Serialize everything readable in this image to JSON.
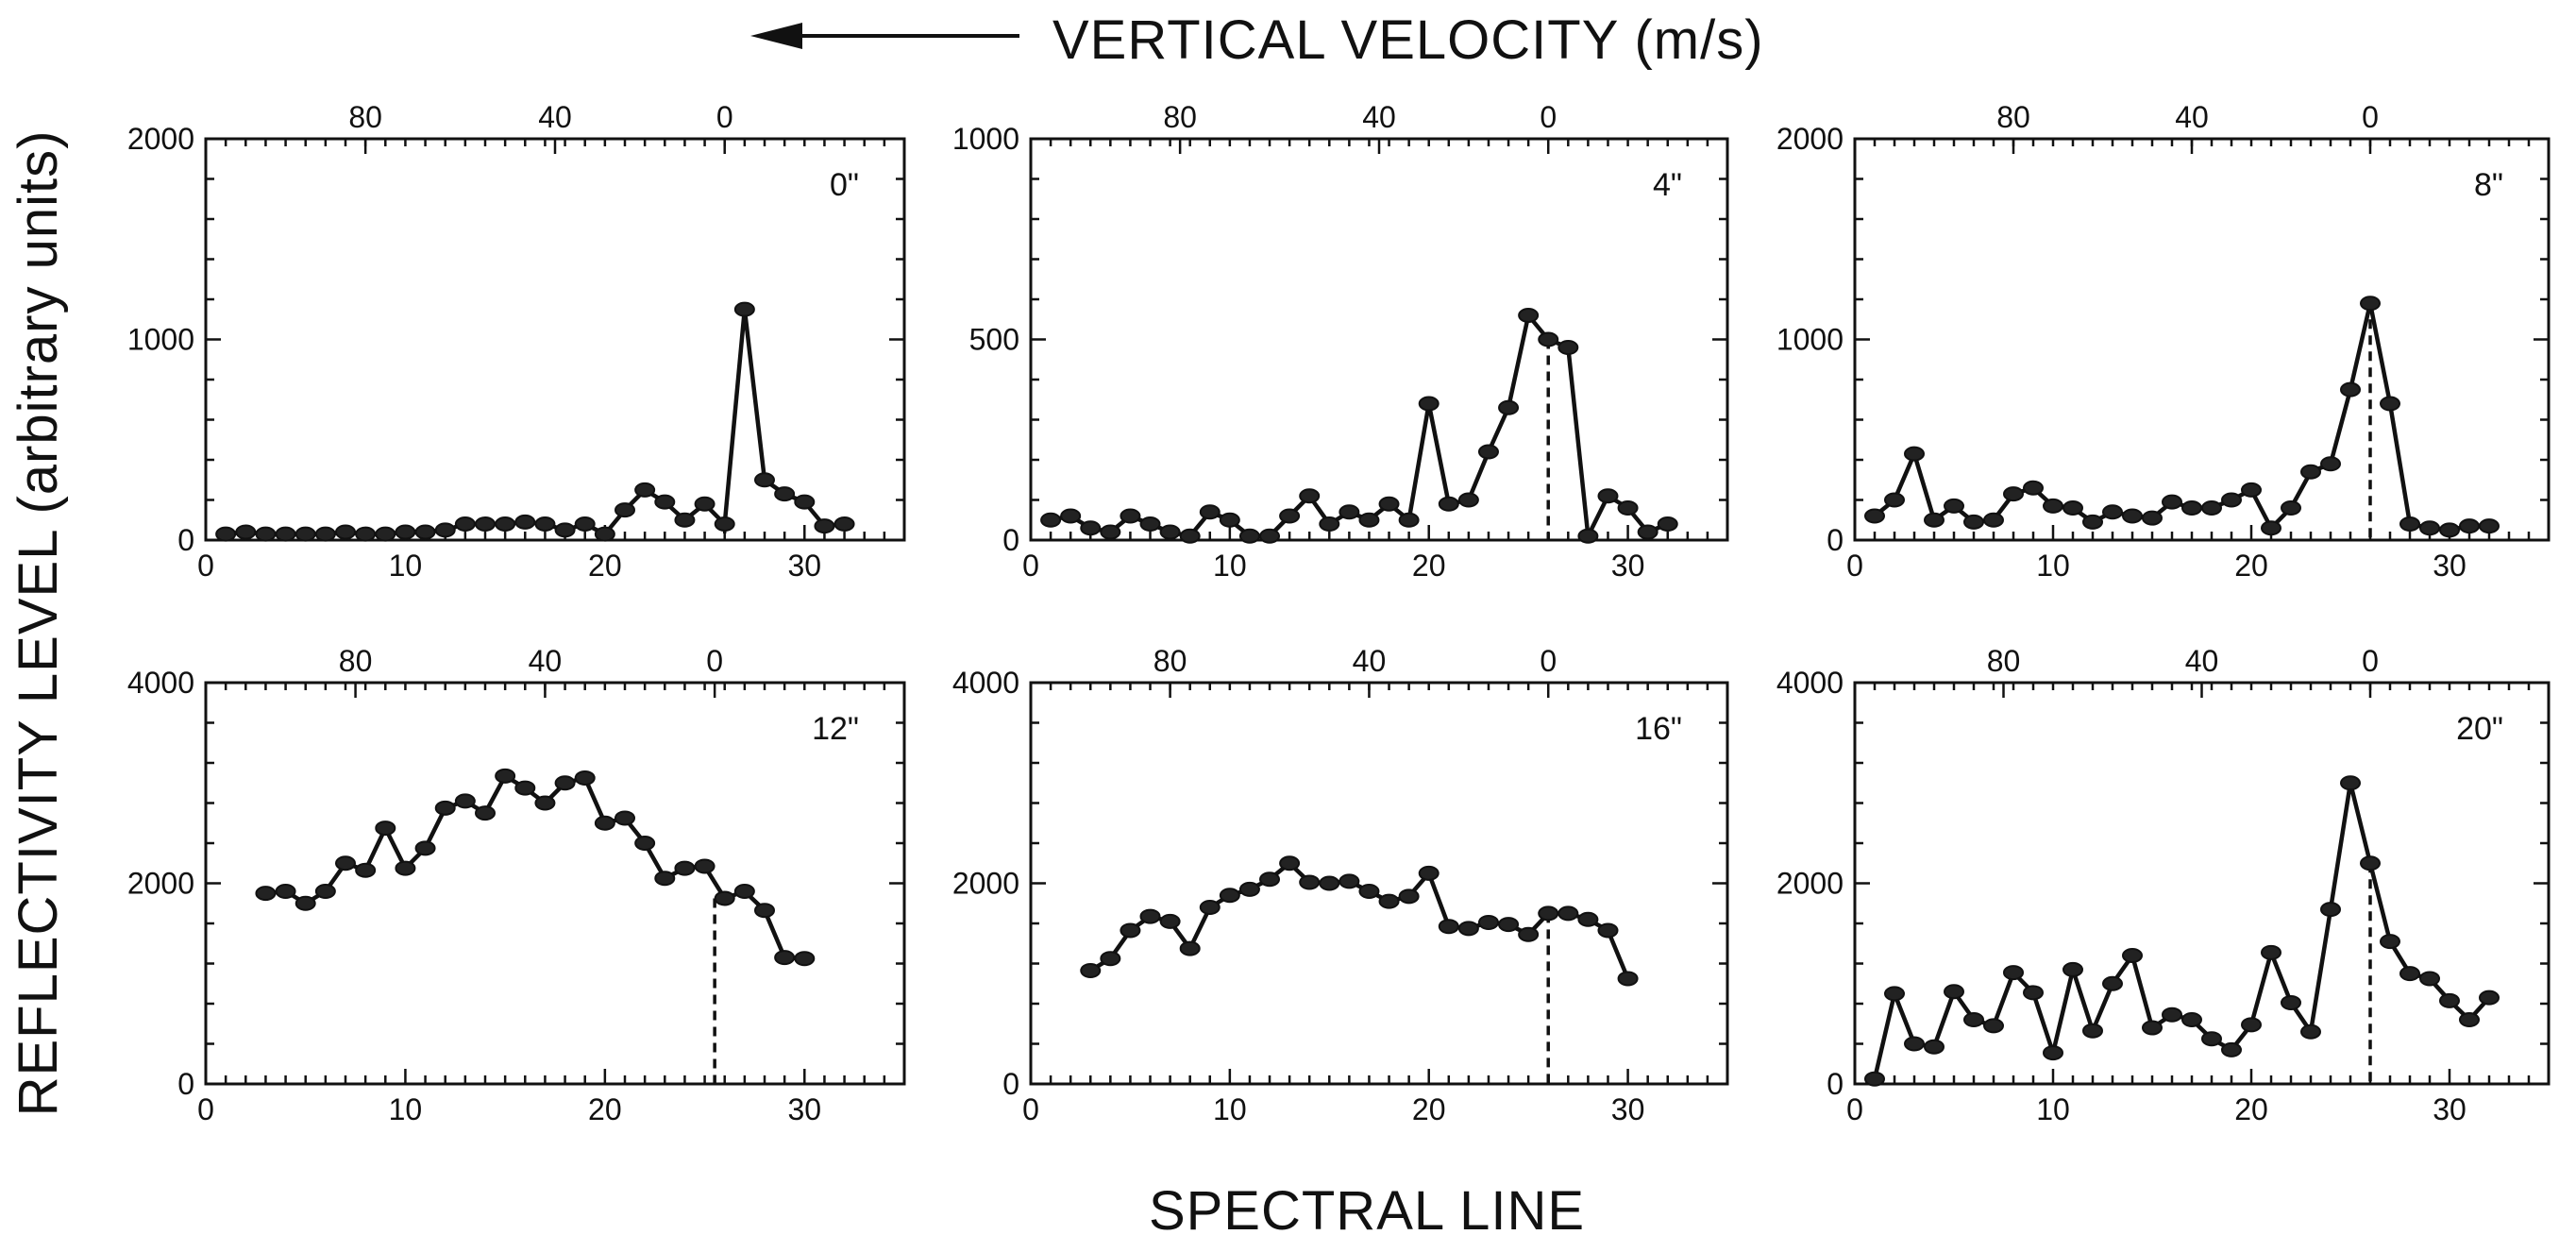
{
  "figure": {
    "top_title": "VERTICAL VELOCITY (m/s)",
    "x_title": "SPECTRAL LINE",
    "y_title": "REFLECTIVITY LEVEL  (arbitrary units)"
  },
  "chart_data": [
    {
      "type": "line",
      "label": "0\"",
      "xlim": [
        0,
        35
      ],
      "ylim": [
        0,
        2000
      ],
      "yticks": [
        0,
        1000,
        2000
      ],
      "xticks": [
        0,
        10,
        20,
        30
      ],
      "top_axis": {
        "ticks": [
          "80",
          "40",
          "0"
        ],
        "at_spectral_line": [
          8,
          17.5,
          26
        ]
      },
      "zero_velocity_line": 26,
      "x": [
        1,
        2,
        3,
        4,
        5,
        6,
        7,
        8,
        9,
        10,
        11,
        12,
        13,
        14,
        15,
        16,
        17,
        18,
        19,
        20,
        21,
        22,
        23,
        24,
        25,
        26,
        27,
        28,
        29,
        30,
        31,
        32
      ],
      "y": [
        30,
        40,
        30,
        30,
        30,
        30,
        40,
        30,
        30,
        40,
        40,
        50,
        80,
        80,
        80,
        90,
        80,
        50,
        80,
        30,
        150,
        250,
        190,
        100,
        180,
        80,
        1150,
        300,
        230,
        190,
        70,
        80
      ]
    },
    {
      "type": "line",
      "label": "4\"",
      "xlim": [
        0,
        35
      ],
      "ylim": [
        0,
        1000
      ],
      "yticks": [
        0,
        500,
        1000
      ],
      "xticks": [
        0,
        10,
        20,
        30
      ],
      "top_axis": {
        "ticks": [
          "80",
          "40",
          "0"
        ],
        "at_spectral_line": [
          7.5,
          17.5,
          26
        ]
      },
      "zero_velocity_line": 26,
      "x": [
        1,
        2,
        3,
        4,
        5,
        6,
        7,
        8,
        9,
        10,
        11,
        12,
        13,
        14,
        15,
        16,
        17,
        18,
        19,
        20,
        21,
        22,
        23,
        24,
        25,
        26,
        27,
        28,
        29,
        30,
        31,
        32
      ],
      "y": [
        50,
        60,
        30,
        20,
        60,
        40,
        20,
        10,
        70,
        50,
        10,
        10,
        60,
        110,
        40,
        70,
        50,
        90,
        50,
        340,
        90,
        100,
        220,
        330,
        560,
        500,
        480,
        10,
        110,
        80,
        20,
        40
      ]
    },
    {
      "type": "line",
      "label": "8\"",
      "xlim": [
        0,
        35
      ],
      "ylim": [
        0,
        2000
      ],
      "yticks": [
        0,
        1000,
        2000
      ],
      "xticks": [
        0,
        10,
        20,
        30
      ],
      "top_axis": {
        "ticks": [
          "80",
          "40",
          "0"
        ],
        "at_spectral_line": [
          8,
          17,
          26
        ]
      },
      "zero_velocity_line": 26,
      "x": [
        1,
        2,
        3,
        4,
        5,
        6,
        7,
        8,
        9,
        10,
        11,
        12,
        13,
        14,
        15,
        16,
        17,
        18,
        19,
        20,
        21,
        22,
        23,
        24,
        25,
        26,
        27,
        28,
        29,
        30,
        31,
        32
      ],
      "y": [
        120,
        200,
        430,
        100,
        170,
        90,
        100,
        230,
        260,
        170,
        160,
        90,
        140,
        120,
        110,
        190,
        160,
        160,
        200,
        250,
        60,
        160,
        340,
        380,
        750,
        1180,
        680,
        80,
        60,
        50,
        70,
        70
      ]
    },
    {
      "type": "line",
      "label": "12\"",
      "xlim": [
        0,
        35
      ],
      "ylim": [
        0,
        4000
      ],
      "yticks": [
        0,
        2000,
        4000
      ],
      "xticks": [
        0,
        10,
        20,
        30
      ],
      "top_axis": {
        "ticks": [
          "80",
          "40",
          "0"
        ],
        "at_spectral_line": [
          7.5,
          17,
          25.5
        ]
      },
      "zero_velocity_line": 25.5,
      "x": [
        3,
        4,
        5,
        6,
        7,
        8,
        9,
        10,
        11,
        12,
        13,
        14,
        15,
        16,
        17,
        18,
        19,
        20,
        21,
        22,
        23,
        24,
        25,
        26,
        27,
        28,
        29,
        30
      ],
      "y": [
        1900,
        1920,
        1800,
        1920,
        2200,
        2130,
        2550,
        2150,
        2350,
        2750,
        2820,
        2700,
        3070,
        2950,
        2800,
        3000,
        3050,
        2600,
        2650,
        2400,
        2050,
        2150,
        2170,
        1850,
        1920,
        1730,
        1260,
        1250
      ]
    },
    {
      "type": "line",
      "label": "16\"",
      "xlim": [
        0,
        35
      ],
      "ylim": [
        0,
        4000
      ],
      "yticks": [
        0,
        2000,
        4000
      ],
      "xticks": [
        0,
        10,
        20,
        30
      ],
      "top_axis": {
        "ticks": [
          "80",
          "40",
          "0"
        ],
        "at_spectral_line": [
          7,
          17,
          26
        ]
      },
      "zero_velocity_line": 26,
      "x": [
        3,
        4,
        5,
        6,
        7,
        8,
        9,
        10,
        11,
        12,
        13,
        14,
        15,
        16,
        17,
        18,
        19,
        20,
        21,
        22,
        23,
        24,
        25,
        26,
        27,
        28,
        29,
        30
      ],
      "y": [
        1130,
        1250,
        1530,
        1670,
        1620,
        1350,
        1760,
        1880,
        1940,
        2040,
        2200,
        2010,
        2000,
        2020,
        1920,
        1820,
        1870,
        2100,
        1570,
        1550,
        1610,
        1590,
        1490,
        1700,
        1700,
        1640,
        1530,
        1050
      ]
    },
    {
      "type": "line",
      "label": "20\"",
      "xlim": [
        0,
        35
      ],
      "ylim": [
        0,
        4000
      ],
      "yticks": [
        0,
        2000,
        4000
      ],
      "xticks": [
        0,
        10,
        20,
        30
      ],
      "top_axis": {
        "ticks": [
          "80",
          "40",
          "0"
        ],
        "at_spectral_line": [
          7.5,
          17.5,
          26
        ]
      },
      "zero_velocity_line": 26,
      "x": [
        1,
        2,
        3,
        4,
        5,
        6,
        7,
        8,
        9,
        10,
        11,
        12,
        13,
        14,
        15,
        16,
        17,
        18,
        19,
        20,
        21,
        22,
        23,
        24,
        25,
        26,
        27,
        28,
        29,
        30,
        31,
        32
      ],
      "y": [
        50,
        900,
        400,
        370,
        920,
        640,
        580,
        1110,
        910,
        310,
        1140,
        530,
        1000,
        1280,
        560,
        690,
        640,
        450,
        340,
        590,
        1310,
        810,
        520,
        1740,
        3000,
        2200,
        1420,
        1100,
        1050,
        830,
        640,
        860
      ]
    }
  ]
}
